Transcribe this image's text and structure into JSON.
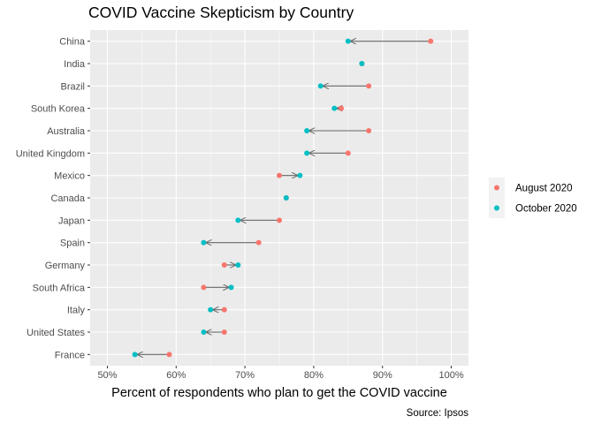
{
  "chart_data": {
    "type": "scatter",
    "title": "COVID Vaccine Skepticism by Country",
    "xlabel": "Percent of respondents who plan to get the COVID vaccine",
    "ylabel": "",
    "caption": "Source: Ipsos",
    "xlim": [
      47.5,
      102.5
    ],
    "x_ticks": [
      50,
      60,
      70,
      80,
      90,
      100
    ],
    "x_tick_labels": [
      "50%",
      "60%",
      "70%",
      "80%",
      "90%",
      "100%"
    ],
    "grid": true,
    "legend_position": "right",
    "categories": [
      "China",
      "India",
      "Brazil",
      "South Korea",
      "Australia",
      "United Kingdom",
      "Mexico",
      "Canada",
      "Japan",
      "Spain",
      "Germany",
      "South Africa",
      "Italy",
      "United States",
      "France"
    ],
    "series": [
      {
        "name": "August 2020",
        "color": "#F8766D",
        "values": [
          97,
          87,
          88,
          84,
          88,
          85,
          75,
          76,
          75,
          72,
          67,
          64,
          67,
          67,
          59
        ]
      },
      {
        "name": "October 2020",
        "color": "#00BFC4",
        "values": [
          85,
          87,
          81,
          83,
          79,
          79,
          78,
          76,
          69,
          64,
          69,
          68,
          65,
          64,
          54
        ]
      }
    ]
  }
}
